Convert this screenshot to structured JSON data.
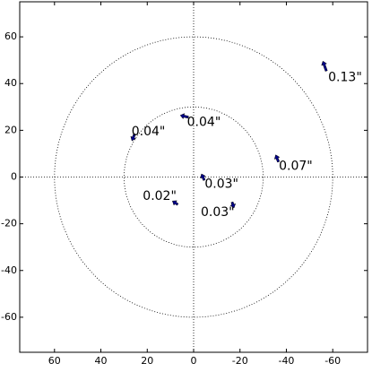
{
  "chart_data": {
    "type": "quiver",
    "x": [
      -56.5,
      4,
      26,
      -36,
      -4,
      8,
      -17
    ],
    "y": [
      47.5,
      26,
      17,
      8,
      0,
      -11,
      -12
    ],
    "u": [
      1.5,
      3.5,
      1.2,
      1.2,
      1.2,
      2.3,
      -0.8
    ],
    "v": [
      4.2,
      0.8,
      -3,
      3,
      2.7,
      1.5,
      -2.5
    ],
    "values": [
      0.13,
      0.04,
      0.04,
      0.07,
      0.03,
      0.02,
      0.03
    ],
    "value_labels": [
      "0.13\"",
      "0.04\"",
      "0.04\"",
      "0.07\"",
      "0.03\"",
      "0.02\"",
      "0.03\""
    ],
    "color": "#00008b",
    "rings": [
      30,
      60
    ],
    "xlim": [
      75,
      -75
    ],
    "ylim": [
      -75,
      75
    ],
    "xticks": [
      60,
      40,
      20,
      0,
      -20,
      -40,
      -60
    ],
    "yticks": [
      -60,
      -40,
      -20,
      0,
      20,
      40,
      60
    ]
  }
}
